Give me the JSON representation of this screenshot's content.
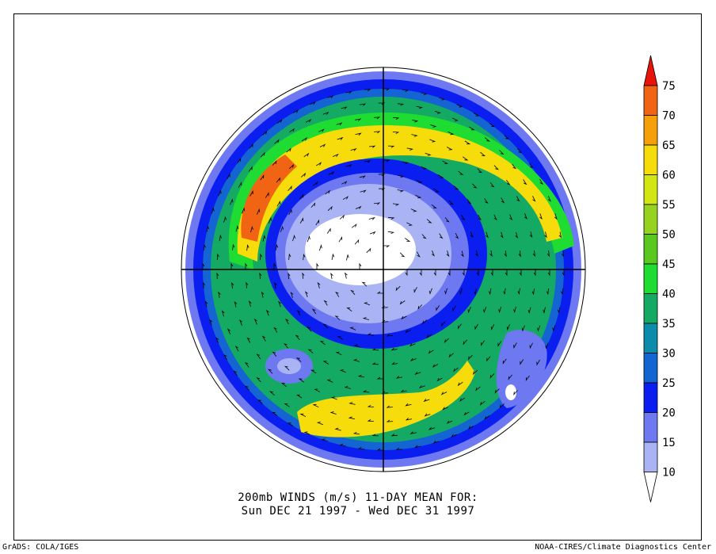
{
  "title": {
    "line1": "200mb WINDS (m/s)   11-DAY MEAN FOR:",
    "line2": "Sun DEC 21 1997 - Wed DEC 31 1997"
  },
  "footer": {
    "left": "GrADS: COLA/IGES",
    "right": "NOAA-CIRES/Climate Diagnostics Center"
  },
  "legend": {
    "unit": "m/s",
    "levels": [
      {
        "value": "75",
        "color": "#e8140a"
      },
      {
        "value": "70",
        "color": "#f06414"
      },
      {
        "value": "65",
        "color": "#f5a00a"
      },
      {
        "value": "60",
        "color": "#f5dc0a"
      },
      {
        "value": "55",
        "color": "#d2e614"
      },
      {
        "value": "50",
        "color": "#96d21e"
      },
      {
        "value": "45",
        "color": "#5ac81e"
      },
      {
        "value": "40",
        "color": "#1edc32"
      },
      {
        "value": "35",
        "color": "#14aa64"
      },
      {
        "value": "30",
        "color": "#0a8caa"
      },
      {
        "value": "25",
        "color": "#1464d2"
      },
      {
        "value": "20",
        "color": "#0a1ef0"
      },
      {
        "value": "15",
        "color": "#6e78f0"
      },
      {
        "value": "10",
        "color": "#aab4f5"
      }
    ],
    "below_lowest_color": "#ffffff"
  }
}
